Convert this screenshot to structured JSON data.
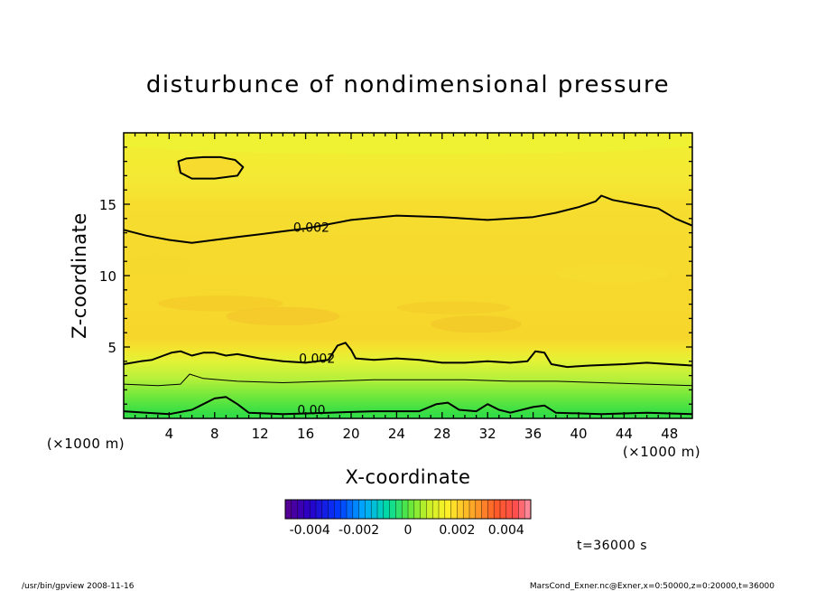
{
  "chart_data": {
    "type": "heatmap",
    "title": "disturbunce of nondimensional pressure",
    "xlabel": "X-coordinate",
    "ylabel": "Z-coordinate",
    "x_unit": "(×1000 m)",
    "y_unit": "(×1000 m)",
    "xlim": [
      0,
      50
    ],
    "ylim": [
      0,
      20
    ],
    "x_ticks": [
      4,
      8,
      12,
      16,
      20,
      24,
      28,
      32,
      36,
      40,
      44,
      48
    ],
    "y_ticks": [
      5,
      10,
      15
    ],
    "colorbar": {
      "range": [
        -0.005,
        0.005
      ],
      "tick_labels": [
        "-0.004",
        "-0.002",
        "0",
        "0.002",
        "0.004"
      ],
      "tick_values": [
        -0.004,
        -0.002,
        0,
        0.002,
        0.004
      ]
    },
    "contour_labels": [
      {
        "text": "0.002",
        "x": 16.5,
        "z": 13.4
      },
      {
        "text": "0.002",
        "x": 17.0,
        "z": 4.2
      },
      {
        "text": "0.00",
        "x": 16.5,
        "z": 0.6
      }
    ],
    "contours": [
      {
        "level": 0.002,
        "points": [
          [
            0,
            13.2
          ],
          [
            2,
            12.8
          ],
          [
            4,
            12.5
          ],
          [
            6,
            12.3
          ],
          [
            8,
            12.5
          ],
          [
            10,
            12.7
          ],
          [
            12,
            12.9
          ],
          [
            14,
            13.1
          ],
          [
            16,
            13.3
          ],
          [
            20,
            13.9
          ],
          [
            24,
            14.2
          ],
          [
            28,
            14.1
          ],
          [
            32,
            13.9
          ],
          [
            36,
            14.1
          ],
          [
            38,
            14.4
          ],
          [
            40,
            14.8
          ],
          [
            41.5,
            15.2
          ],
          [
            42,
            15.6
          ],
          [
            43,
            15.3
          ],
          [
            45,
            15.0
          ],
          [
            47,
            14.7
          ],
          [
            48.5,
            14.0
          ],
          [
            50,
            13.5
          ]
        ]
      },
      {
        "level": 0.002,
        "closed": true,
        "points": [
          [
            4.8,
            18.0
          ],
          [
            5.5,
            18.2
          ],
          [
            7,
            18.3
          ],
          [
            8.5,
            18.3
          ],
          [
            9.8,
            18.1
          ],
          [
            10.5,
            17.6
          ],
          [
            10,
            17.0
          ],
          [
            8,
            16.8
          ],
          [
            6,
            16.8
          ],
          [
            5,
            17.2
          ],
          [
            4.8,
            18.0
          ]
        ]
      },
      {
        "level": 0.002,
        "points": [
          [
            0,
            3.8
          ],
          [
            1.5,
            4.0
          ],
          [
            2.5,
            4.1
          ],
          [
            3.5,
            4.4
          ],
          [
            4.2,
            4.6
          ],
          [
            5,
            4.7
          ],
          [
            6,
            4.4
          ],
          [
            7,
            4.6
          ],
          [
            8,
            4.6
          ],
          [
            9,
            4.4
          ],
          [
            10,
            4.5
          ],
          [
            12,
            4.2
          ],
          [
            14,
            4.0
          ],
          [
            16,
            3.9
          ],
          [
            18,
            4.1
          ],
          [
            18.8,
            5.1
          ],
          [
            19.5,
            5.3
          ],
          [
            20,
            4.8
          ],
          [
            20.4,
            4.2
          ],
          [
            22,
            4.1
          ],
          [
            24,
            4.2
          ],
          [
            26,
            4.1
          ],
          [
            28,
            3.9
          ],
          [
            30,
            3.9
          ],
          [
            32,
            4.0
          ],
          [
            34,
            3.9
          ],
          [
            35.5,
            4.0
          ],
          [
            36.2,
            4.7
          ],
          [
            37,
            4.6
          ],
          [
            37.6,
            3.8
          ],
          [
            39,
            3.6
          ],
          [
            41,
            3.7
          ],
          [
            44,
            3.8
          ],
          [
            46,
            3.9
          ],
          [
            48,
            3.8
          ],
          [
            50,
            3.7
          ]
        ]
      },
      {
        "level": 0.0,
        "points": [
          [
            0,
            0.5
          ],
          [
            2,
            0.4
          ],
          [
            4,
            0.3
          ],
          [
            6,
            0.6
          ],
          [
            7,
            1.0
          ],
          [
            8,
            1.4
          ],
          [
            9,
            1.5
          ],
          [
            10,
            1.0
          ],
          [
            11,
            0.4
          ],
          [
            14,
            0.3
          ],
          [
            18,
            0.4
          ],
          [
            22,
            0.5
          ],
          [
            26,
            0.5
          ],
          [
            27.5,
            1.0
          ],
          [
            28.5,
            1.1
          ],
          [
            29.5,
            0.6
          ],
          [
            31,
            0.5
          ],
          [
            32,
            1.0
          ],
          [
            33,
            0.6
          ],
          [
            34,
            0.4
          ],
          [
            36,
            0.8
          ],
          [
            37,
            0.9
          ],
          [
            38,
            0.4
          ],
          [
            42,
            0.3
          ],
          [
            46,
            0.4
          ],
          [
            50,
            0.3
          ]
        ]
      },
      {
        "level": 0.001,
        "thin": true,
        "points": [
          [
            0,
            2.4
          ],
          [
            3,
            2.3
          ],
          [
            5,
            2.4
          ],
          [
            5.8,
            3.1
          ],
          [
            7,
            2.8
          ],
          [
            10,
            2.6
          ],
          [
            14,
            2.5
          ],
          [
            18,
            2.6
          ],
          [
            22,
            2.7
          ],
          [
            26,
            2.7
          ],
          [
            30,
            2.7
          ],
          [
            34,
            2.6
          ],
          [
            38,
            2.6
          ],
          [
            42,
            2.5
          ],
          [
            46,
            2.4
          ],
          [
            50,
            2.3
          ]
        ]
      }
    ],
    "grid": false,
    "colormap": "rainbow"
  },
  "footer": {
    "time_label": "t=36000 s",
    "left_note": "/usr/bin/gpview   2008-11-16",
    "right_note": "MarsCond_Exner.nc@Exner,x=0:50000,z=0:20000,t=36000"
  }
}
